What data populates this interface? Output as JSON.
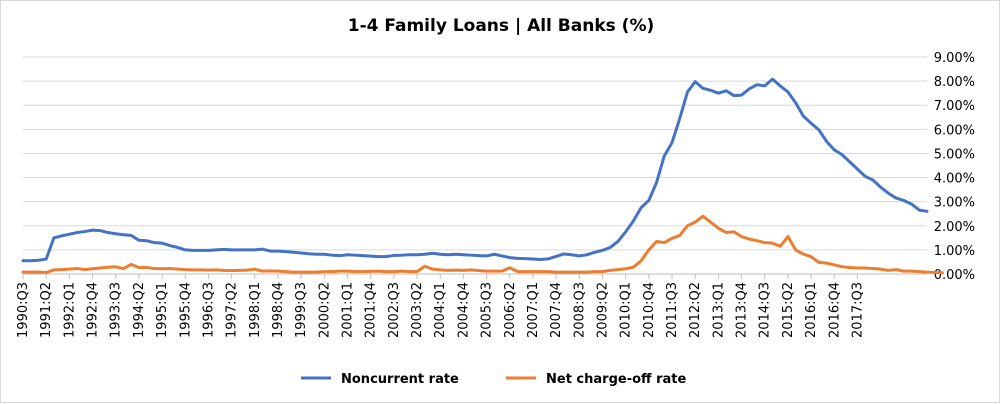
{
  "chart_data": {
    "type": "line",
    "title": "1-4 Family Loans | All Banks (%)",
    "xlabel": "",
    "ylabel": "",
    "ylim": [
      0,
      9
    ],
    "y_ticks": [
      "0.00%",
      "1.00%",
      "2.00%",
      "3.00%",
      "4.00%",
      "5.00%",
      "6.00%",
      "7.00%",
      "8.00%",
      "9.00%"
    ],
    "x_tick_labels": [
      "1990:Q3",
      "1991:Q2",
      "1992:Q1",
      "1992:Q4",
      "1993:Q3",
      "1994:Q2",
      "1995:Q1",
      "1995:Q4",
      "1996:Q3",
      "1997:Q2",
      "1998:Q1",
      "1998:Q4",
      "1999:Q3",
      "2000:Q2",
      "2001:Q1",
      "2001:Q4",
      "2002:Q3",
      "2003:Q2",
      "2004:Q1",
      "2004:Q4",
      "2005:Q3",
      "2006:Q2",
      "2007:Q1",
      "2007:Q4",
      "2008:Q3",
      "2009:Q2",
      "2010:Q1",
      "2010:Q4",
      "2011:Q3",
      "2012:Q2",
      "2013:Q1",
      "2013:Q4",
      "2014:Q3",
      "2015:Q2",
      "2016:Q1",
      "2016:Q4",
      "2017:Q3"
    ],
    "legend_position": "bottom",
    "series": [
      {
        "name": "Noncurrent rate",
        "color": "#4472c4",
        "values": [
          0.55,
          0.55,
          0.57,
          0.62,
          1.5,
          1.58,
          1.65,
          1.72,
          1.76,
          1.82,
          1.8,
          1.72,
          1.67,
          1.63,
          1.6,
          1.4,
          1.38,
          1.3,
          1.28,
          1.18,
          1.1,
          1.0,
          0.98,
          0.98,
          0.98,
          1.0,
          1.02,
          1.0,
          1.0,
          1.0,
          1.0,
          1.03,
          0.95,
          0.95,
          0.93,
          0.9,
          0.87,
          0.84,
          0.82,
          0.82,
          0.78,
          0.76,
          0.8,
          0.78,
          0.76,
          0.74,
          0.72,
          0.72,
          0.77,
          0.78,
          0.8,
          0.8,
          0.82,
          0.86,
          0.82,
          0.8,
          0.82,
          0.8,
          0.78,
          0.76,
          0.75,
          0.82,
          0.75,
          0.68,
          0.65,
          0.64,
          0.62,
          0.6,
          0.63,
          0.73,
          0.83,
          0.8,
          0.75,
          0.8,
          0.9,
          0.98,
          1.1,
          1.35,
          1.75,
          2.2,
          2.75,
          3.05,
          3.8,
          4.9,
          5.45,
          6.45,
          7.55,
          7.98,
          7.7,
          7.62,
          7.5,
          7.6,
          7.4,
          7.42,
          7.68,
          7.85,
          7.8,
          8.08,
          7.8,
          7.55,
          7.1,
          6.55,
          6.25,
          5.98,
          5.5,
          5.15,
          4.95,
          4.65,
          4.35,
          4.05,
          3.9,
          3.6,
          3.35,
          3.15,
          3.05,
          2.9,
          2.65,
          2.6
        ]
      },
      {
        "name": "Net charge-off rate",
        "color": "#ed7d31",
        "values": [
          0.08,
          0.08,
          0.08,
          0.06,
          0.17,
          0.18,
          0.2,
          0.23,
          0.18,
          0.22,
          0.25,
          0.28,
          0.3,
          0.22,
          0.4,
          0.27,
          0.27,
          0.23,
          0.22,
          0.23,
          0.2,
          0.18,
          0.17,
          0.17,
          0.16,
          0.17,
          0.15,
          0.14,
          0.15,
          0.16,
          0.2,
          0.12,
          0.13,
          0.12,
          0.1,
          0.08,
          0.08,
          0.08,
          0.08,
          0.1,
          0.1,
          0.12,
          0.12,
          0.1,
          0.1,
          0.11,
          0.12,
          0.1,
          0.1,
          0.12,
          0.1,
          0.1,
          0.32,
          0.2,
          0.17,
          0.15,
          0.16,
          0.15,
          0.17,
          0.14,
          0.12,
          0.12,
          0.12,
          0.26,
          0.1,
          0.1,
          0.1,
          0.1,
          0.1,
          0.08,
          0.08,
          0.08,
          0.08,
          0.08,
          0.1,
          0.1,
          0.15,
          0.18,
          0.22,
          0.28,
          0.55,
          1.0,
          1.35,
          1.3,
          1.48,
          1.6,
          2.0,
          2.15,
          2.4,
          2.15,
          1.9,
          1.72,
          1.75,
          1.55,
          1.45,
          1.38,
          1.3,
          1.28,
          1.15,
          1.55,
          1.0,
          0.82,
          0.72,
          0.48,
          0.45,
          0.38,
          0.3,
          0.27,
          0.25,
          0.25,
          0.23,
          0.2,
          0.15,
          0.18,
          0.12,
          0.12,
          0.1,
          0.08,
          0.06,
          0.05
        ]
      }
    ]
  }
}
